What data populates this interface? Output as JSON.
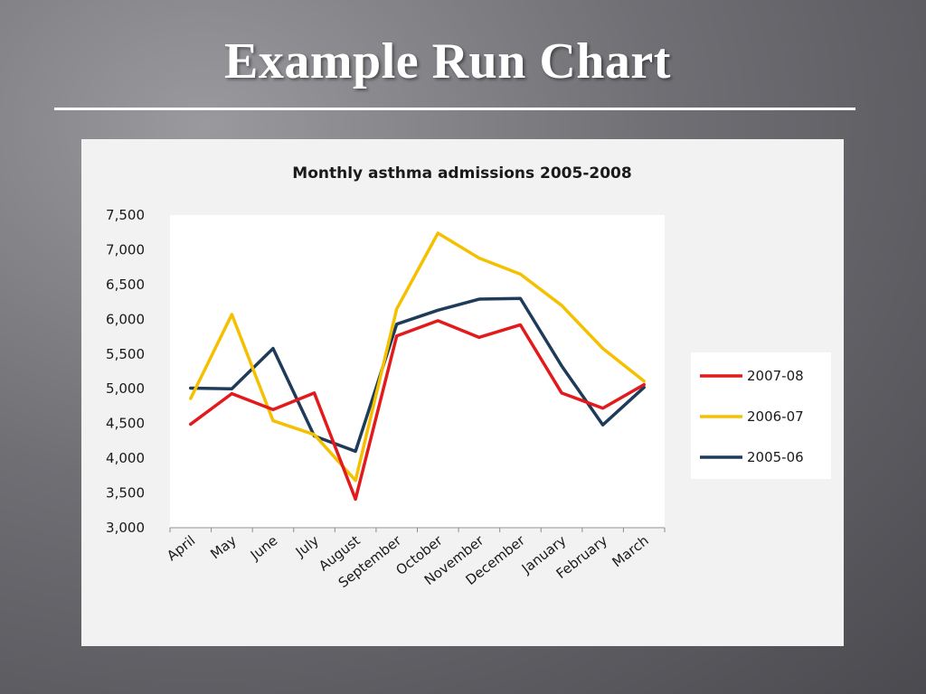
{
  "slide": {
    "title": "Example Run Chart"
  },
  "chart_data": {
    "type": "line",
    "title": "Monthly asthma admissions 2005-2008",
    "xlabel": "",
    "ylabel": "",
    "ylim": [
      3000,
      7500
    ],
    "y_ticks": [
      3000,
      3500,
      4000,
      4500,
      5000,
      5500,
      6000,
      6500,
      7000,
      7500
    ],
    "y_tick_labels": [
      "3,000",
      "3,500",
      "4,000",
      "4,500",
      "5,000",
      "5,500",
      "6,000",
      "6,500",
      "7,000",
      "7,500"
    ],
    "categories": [
      "April",
      "May",
      "June",
      "July",
      "August",
      "September",
      "October",
      "November",
      "December",
      "January",
      "February",
      "March"
    ],
    "grid": false,
    "legend_position": "right",
    "series": [
      {
        "name": "2007-08",
        "color": "#e31a1c",
        "values": [
          4490,
          4930,
          4700,
          4940,
          3410,
          5760,
          5980,
          5740,
          5920,
          4940,
          4720,
          5060
        ]
      },
      {
        "name": "2006-07",
        "color": "#f5c000",
        "values": [
          4860,
          6070,
          4540,
          4340,
          3680,
          6150,
          7240,
          6880,
          6650,
          6200,
          5580,
          5110
        ]
      },
      {
        "name": "2005-06",
        "color": "#1f3b5a",
        "values": [
          5010,
          5000,
          5580,
          4320,
          4100,
          5930,
          6130,
          6290,
          6300,
          5330,
          4480,
          5020
        ]
      }
    ]
  }
}
